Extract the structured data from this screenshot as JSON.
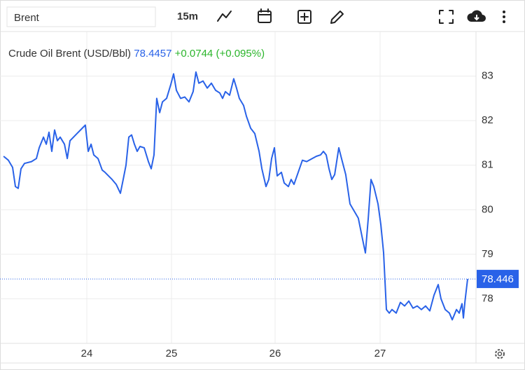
{
  "toolbar": {
    "search": "Brent",
    "interval": "15m"
  },
  "quote": {
    "price": 78.4457,
    "change": "+0.0744",
    "change_pct": "(+0.095%)"
  },
  "chart_data": {
    "type": "line",
    "title": "Crude Oil Brent (USD/Bbl)",
    "x": [
      23.017,
      23.074,
      23.124,
      23.157,
      23.19,
      23.223,
      23.264,
      23.347,
      23.405,
      23.438,
      23.488,
      23.521,
      23.554,
      23.587,
      23.62,
      23.653,
      23.686,
      23.736,
      23.769,
      23.802,
      23.843,
      23.884,
      23.926,
      23.983,
      24.017,
      24.05,
      24.083,
      24.132,
      24.182,
      24.215,
      24.298,
      24.347,
      24.397,
      24.43,
      24.463,
      24.496,
      24.529,
      24.562,
      24.595,
      24.628,
      24.678,
      24.727,
      24.76,
      24.793,
      24.826,
      24.86,
      24.893,
      24.942,
      24.992,
      25.02,
      25.047,
      25.088,
      25.128,
      25.169,
      25.209,
      25.236,
      25.264,
      25.304,
      25.345,
      25.385,
      25.426,
      25.466,
      25.493,
      25.52,
      25.561,
      25.601,
      25.628,
      25.655,
      25.696,
      25.723,
      25.764,
      25.804,
      25.845,
      25.872,
      25.912,
      25.939,
      25.966,
      25.993,
      26.02,
      26.06,
      26.087,
      26.127,
      26.153,
      26.18,
      26.22,
      26.26,
      26.3,
      26.353,
      26.393,
      26.433,
      26.46,
      26.487,
      26.513,
      26.54,
      26.567,
      26.607,
      26.633,
      26.673,
      26.713,
      26.753,
      26.793,
      26.833,
      26.86,
      26.887,
      26.913,
      26.94,
      26.98,
      27.007,
      27.033,
      27.06,
      27.087,
      27.113,
      27.153,
      27.193,
      27.233,
      27.273,
      27.313,
      27.353,
      27.393,
      27.433,
      27.473,
      27.513,
      27.553,
      27.58,
      27.62,
      27.66,
      27.687,
      27.727,
      27.753,
      27.78,
      27.793,
      27.807,
      27.833
    ],
    "series": [
      {
        "name": "Crude Oil Brent",
        "color": "#2962e8",
        "values": [
          81.2,
          81.11,
          80.95,
          80.52,
          80.48,
          80.92,
          81.04,
          81.08,
          81.15,
          81.39,
          81.63,
          81.47,
          81.74,
          81.31,
          81.79,
          81.55,
          81.63,
          81.47,
          81.15,
          81.55,
          81.63,
          81.71,
          81.79,
          81.9,
          81.31,
          81.47,
          81.23,
          81.15,
          80.89,
          80.84,
          80.68,
          80.57,
          80.37,
          80.68,
          81.0,
          81.63,
          81.68,
          81.47,
          81.31,
          81.42,
          81.39,
          81.08,
          80.92,
          81.23,
          82.5,
          82.18,
          82.42,
          82.5,
          82.81,
          83.05,
          82.68,
          82.5,
          82.53,
          82.42,
          82.65,
          83.09,
          82.84,
          82.89,
          82.73,
          82.84,
          82.68,
          82.62,
          82.5,
          82.65,
          82.57,
          82.94,
          82.73,
          82.5,
          82.34,
          82.1,
          81.83,
          81.71,
          81.31,
          80.92,
          80.52,
          80.68,
          81.15,
          81.39,
          80.76,
          80.84,
          80.6,
          80.52,
          80.68,
          80.57,
          80.84,
          81.11,
          81.08,
          81.15,
          81.2,
          81.23,
          81.31,
          81.23,
          80.92,
          80.68,
          80.79,
          81.39,
          81.15,
          80.79,
          80.13,
          79.97,
          79.81,
          79.34,
          79.03,
          79.81,
          80.68,
          80.52,
          80.13,
          79.66,
          79.03,
          77.76,
          77.68,
          77.76,
          77.68,
          77.92,
          77.84,
          77.95,
          77.79,
          77.84,
          77.76,
          77.84,
          77.73,
          78.08,
          78.32,
          78.0,
          77.76,
          77.68,
          77.53,
          77.76,
          77.68,
          77.89,
          77.57,
          77.92,
          78.4457
        ]
      }
    ],
    "current_price": 78.446,
    "xlim": [
      22.975,
      27.913
    ],
    "xticks": [
      24,
      25,
      26,
      27
    ],
    "ylim": [
      77,
      84
    ],
    "yticks": [
      78,
      79,
      80,
      81,
      82,
      83
    ],
    "grid": true
  }
}
